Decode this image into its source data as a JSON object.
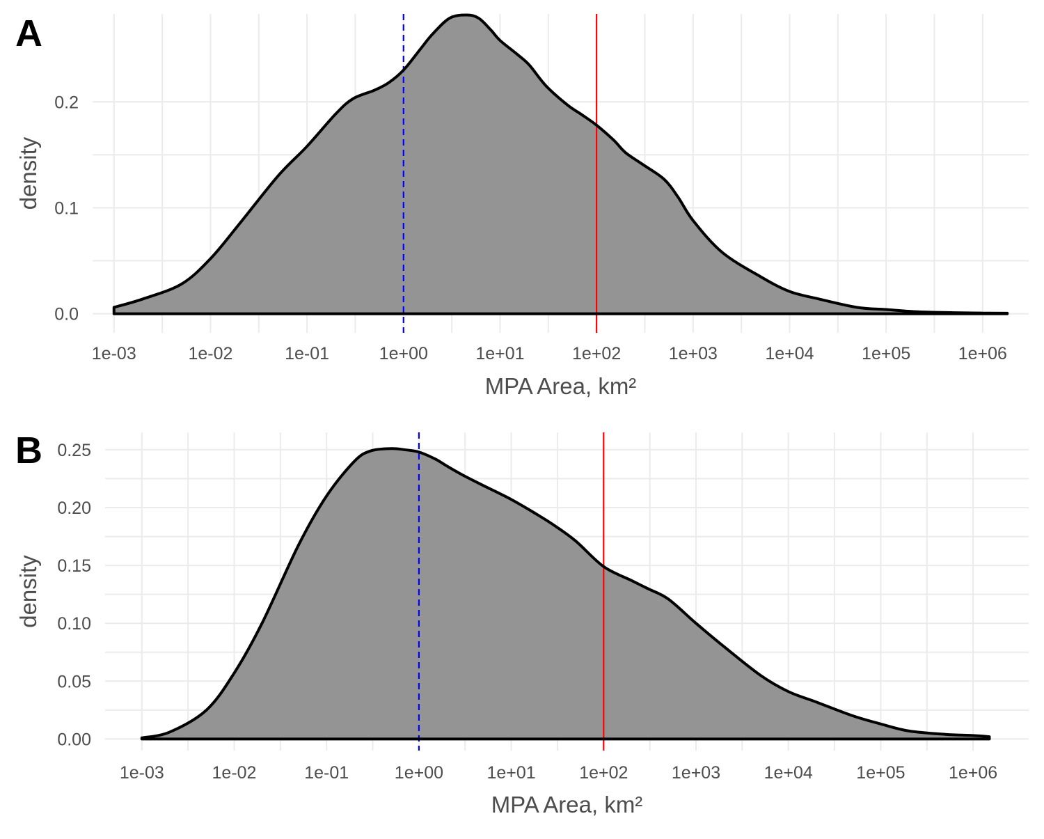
{
  "chart_data": [
    {
      "type": "area",
      "panel_tag": "A",
      "xscale": "log10",
      "xlabel": "MPA Area, km²",
      "ylabel": "density",
      "xlim": [
        0.0006,
        3000000
      ],
      "ylim": [
        -0.018,
        0.283
      ],
      "x_ticks": [
        0.001,
        0.01,
        0.1,
        1,
        10,
        100,
        1000,
        10000,
        100000,
        1000000
      ],
      "x_tick_labels": [
        "1e-03",
        "1e-02",
        "1e-01",
        "1e+00",
        "1e+01",
        "1e+02",
        "1e+03",
        "1e+04",
        "1e+05",
        "1e+06"
      ],
      "y_ticks": [
        0.0,
        0.1,
        0.2
      ],
      "y_tick_labels": [
        "0.0",
        "0.1",
        "0.2"
      ],
      "grid": true,
      "fill_color": "#939393",
      "line_color": "#000000",
      "x": [
        0.001,
        0.002,
        0.005,
        0.01,
        0.02,
        0.05,
        0.1,
        0.2,
        0.3,
        0.5,
        0.7,
        1,
        1.5,
        2,
        3,
        4.5,
        6,
        8,
        10,
        15,
        20,
        30,
        50,
        70,
        100,
        150,
        200,
        300,
        500,
        700,
        1000,
        2000,
        5000,
        10000,
        20000,
        50000,
        100000,
        200000,
        500000,
        1000000,
        1800000
      ],
      "y": [
        0.006,
        0.014,
        0.028,
        0.052,
        0.085,
        0.13,
        0.158,
        0.189,
        0.203,
        0.211,
        0.218,
        0.23,
        0.25,
        0.264,
        0.279,
        0.282,
        0.279,
        0.268,
        0.258,
        0.245,
        0.235,
        0.215,
        0.197,
        0.188,
        0.178,
        0.164,
        0.152,
        0.141,
        0.127,
        0.11,
        0.088,
        0.058,
        0.035,
        0.021,
        0.014,
        0.006,
        0.004,
        0.002,
        0.001,
        0.0006,
        0.0005
      ],
      "vlines": [
        {
          "x": 1,
          "color": "#0000ff",
          "style": "dashed"
        },
        {
          "x": 100,
          "color": "#ff0000",
          "style": "solid"
        }
      ]
    },
    {
      "type": "area",
      "panel_tag": "B",
      "xscale": "log10",
      "xlabel": "MPA Area, km²",
      "ylabel": "density",
      "xlim": [
        0.0004,
        4000000
      ],
      "ylim": [
        -0.01,
        0.265
      ],
      "x_ticks": [
        0.001,
        0.01,
        0.1,
        1,
        10,
        100,
        1000,
        10000,
        100000,
        1000000
      ],
      "x_tick_labels": [
        "1e-03",
        "1e-02",
        "1e-01",
        "1e+00",
        "1e+01",
        "1e+02",
        "1e+03",
        "1e+04",
        "1e+05",
        "1e+06"
      ],
      "y_ticks": [
        0.0,
        0.05,
        0.1,
        0.15,
        0.2,
        0.25
      ],
      "y_tick_labels": [
        "0.00",
        "0.05",
        "0.10",
        "0.15",
        "0.20",
        "0.25"
      ],
      "grid": true,
      "fill_color": "#939393",
      "line_color": "#000000",
      "x": [
        0.001,
        0.002,
        0.005,
        0.01,
        0.02,
        0.05,
        0.1,
        0.2,
        0.3,
        0.5,
        0.7,
        1,
        1.5,
        2,
        3,
        5,
        10,
        20,
        30,
        50,
        100,
        200,
        300,
        500,
        1000,
        2000,
        5000,
        10000,
        20000,
        50000,
        100000,
        200000,
        500000,
        1000000,
        1500000
      ],
      "y": [
        0.001,
        0.006,
        0.025,
        0.057,
        0.1,
        0.168,
        0.21,
        0.24,
        0.249,
        0.251,
        0.25,
        0.248,
        0.242,
        0.236,
        0.228,
        0.219,
        0.207,
        0.193,
        0.184,
        0.171,
        0.149,
        0.137,
        0.13,
        0.121,
        0.1,
        0.08,
        0.055,
        0.041,
        0.032,
        0.02,
        0.013,
        0.007,
        0.004,
        0.003,
        0.002
      ],
      "vlines": [
        {
          "x": 1,
          "color": "#0000ff",
          "style": "dashed"
        },
        {
          "x": 100,
          "color": "#ff0000",
          "style": "solid"
        }
      ]
    }
  ]
}
